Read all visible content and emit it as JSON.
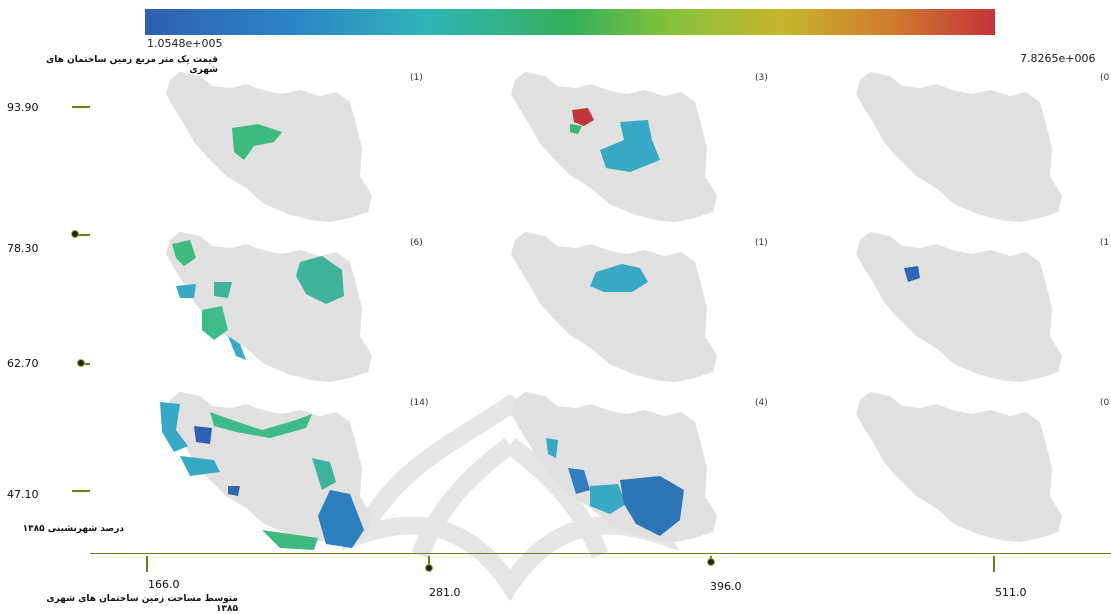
{
  "colorbar": {
    "min_label": "1.0548e+005",
    "max_label": "7.8265e+006",
    "colors": [
      "#2f5fb1",
      "#2fb4b7",
      "#33b05a",
      "#c7b52e",
      "#c3343a"
    ]
  },
  "titles": {
    "color_variable": "قیمت یک متر مربع زمین ساختمان های شهری",
    "y_variable": "درصد شهرنشینی ۱۳۸۵",
    "x_variable": "متوسط مساحت زمین ساختمان های شهری ۱۳۸۵"
  },
  "chart_data": {
    "type": "map-grid",
    "y_ticks": [
      "93.90",
      "78.30",
      "62.70",
      "47.10"
    ],
    "x_ticks": [
      "166.0",
      "281.0",
      "396.0",
      "511.0"
    ],
    "cells": [
      {
        "row": 0,
        "col": 0,
        "count": "(1)"
      },
      {
        "row": 0,
        "col": 1,
        "count": "(3)"
      },
      {
        "row": 0,
        "col": 2,
        "count": "(0"
      },
      {
        "row": 1,
        "col": 0,
        "count": "(6)"
      },
      {
        "row": 1,
        "col": 1,
        "count": "(1)"
      },
      {
        "row": 1,
        "col": 2,
        "count": "(1"
      },
      {
        "row": 2,
        "col": 0,
        "count": "(14)"
      },
      {
        "row": 2,
        "col": 1,
        "count": "(4)"
      },
      {
        "row": 2,
        "col": 2,
        "count": "(0"
      }
    ]
  }
}
